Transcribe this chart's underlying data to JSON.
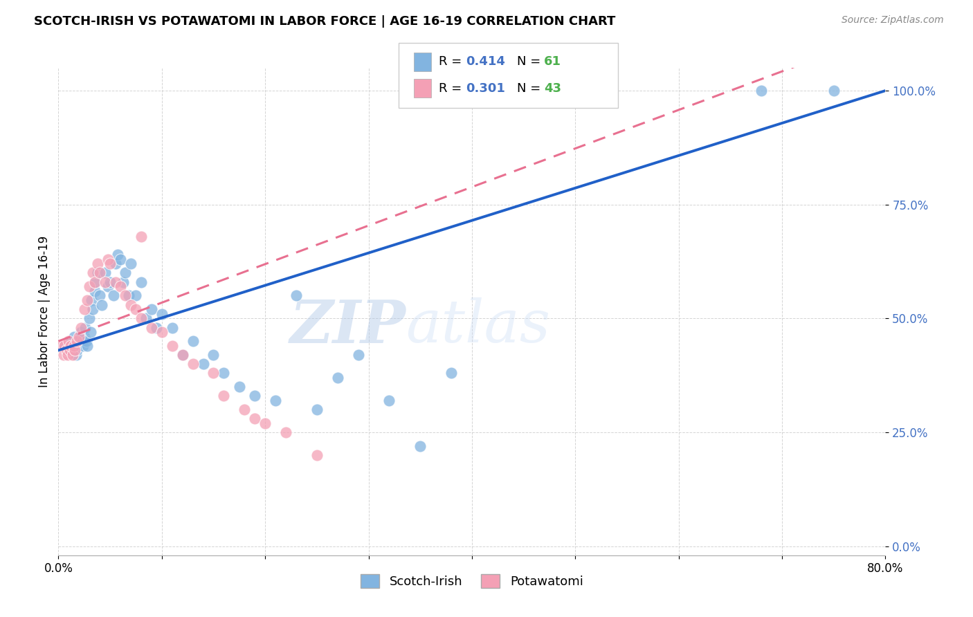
{
  "title": "SCOTCH-IRISH VS POTAWATOMI IN LABOR FORCE | AGE 16-19 CORRELATION CHART",
  "source": "Source: ZipAtlas.com",
  "ylabel": "In Labor Force | Age 16-19",
  "xmin": 0.0,
  "xmax": 0.8,
  "ymin": 0.0,
  "ymax": 1.05,
  "xticks": [
    0.0,
    0.1,
    0.2,
    0.3,
    0.4,
    0.5,
    0.6,
    0.7,
    0.8
  ],
  "ytick_positions": [
    0.0,
    0.25,
    0.5,
    0.75,
    1.0
  ],
  "ytick_labels": [
    "0.0%",
    "25.0%",
    "50.0%",
    "75.0%",
    "100.0%"
  ],
  "xtick_labels": [
    "0.0%",
    "",
    "",
    "",
    "",
    "",
    "",
    "",
    "80.0%"
  ],
  "scotch_irish_color": "#82b4e0",
  "potawatomi_color": "#f4a0b5",
  "scotch_irish_line_color": "#2060c8",
  "potawatomi_line_color": "#e87090",
  "scotch_irish_R": 0.414,
  "scotch_irish_N": 61,
  "potawatomi_R": 0.301,
  "potawatomi_N": 43,
  "legend_R_color": "#4472c4",
  "legend_N_color": "#4db04d",
  "watermark_zip": "ZIP",
  "watermark_atlas": "atlas",
  "background_color": "#ffffff",
  "scotch_irish_x": [
    0.005,
    0.01,
    0.012,
    0.015,
    0.016,
    0.017,
    0.018,
    0.019,
    0.02,
    0.021,
    0.022,
    0.023,
    0.024,
    0.025,
    0.026,
    0.027,
    0.028,
    0.03,
    0.031,
    0.032,
    0.033,
    0.035,
    0.036,
    0.038,
    0.04,
    0.042,
    0.045,
    0.048,
    0.05,
    0.053,
    0.055,
    0.057,
    0.06,
    0.063,
    0.065,
    0.068,
    0.07,
    0.075,
    0.08,
    0.085,
    0.09,
    0.095,
    0.1,
    0.11,
    0.12,
    0.13,
    0.14,
    0.15,
    0.16,
    0.175,
    0.19,
    0.21,
    0.23,
    0.25,
    0.27,
    0.29,
    0.32,
    0.35,
    0.38,
    0.68,
    0.75
  ],
  "scotch_irish_y": [
    0.44,
    0.43,
    0.45,
    0.46,
    0.44,
    0.42,
    0.43,
    0.45,
    0.44,
    0.46,
    0.47,
    0.45,
    0.44,
    0.46,
    0.48,
    0.45,
    0.44,
    0.5,
    0.47,
    0.54,
    0.52,
    0.56,
    0.58,
    0.6,
    0.55,
    0.53,
    0.6,
    0.57,
    0.58,
    0.55,
    0.62,
    0.64,
    0.63,
    0.58,
    0.6,
    0.55,
    0.62,
    0.55,
    0.58,
    0.5,
    0.52,
    0.48,
    0.51,
    0.48,
    0.42,
    0.45,
    0.4,
    0.42,
    0.38,
    0.35,
    0.33,
    0.32,
    0.55,
    0.3,
    0.37,
    0.42,
    0.32,
    0.22,
    0.38,
    1.0,
    1.0
  ],
  "potawatomi_x": [
    0.003,
    0.005,
    0.006,
    0.008,
    0.009,
    0.01,
    0.011,
    0.012,
    0.014,
    0.015,
    0.016,
    0.018,
    0.02,
    0.022,
    0.025,
    0.028,
    0.03,
    0.033,
    0.035,
    0.038,
    0.04,
    0.045,
    0.048,
    0.05,
    0.055,
    0.06,
    0.065,
    0.07,
    0.075,
    0.08,
    0.09,
    0.1,
    0.11,
    0.12,
    0.13,
    0.15,
    0.16,
    0.18,
    0.19,
    0.2,
    0.22,
    0.25,
    0.08
  ],
  "potawatomi_y": [
    0.44,
    0.42,
    0.44,
    0.43,
    0.42,
    0.45,
    0.43,
    0.44,
    0.42,
    0.44,
    0.43,
    0.45,
    0.46,
    0.48,
    0.52,
    0.54,
    0.57,
    0.6,
    0.58,
    0.62,
    0.6,
    0.58,
    0.63,
    0.62,
    0.58,
    0.57,
    0.55,
    0.53,
    0.52,
    0.5,
    0.48,
    0.47,
    0.44,
    0.42,
    0.4,
    0.38,
    0.33,
    0.3,
    0.28,
    0.27,
    0.25,
    0.2,
    0.68
  ]
}
